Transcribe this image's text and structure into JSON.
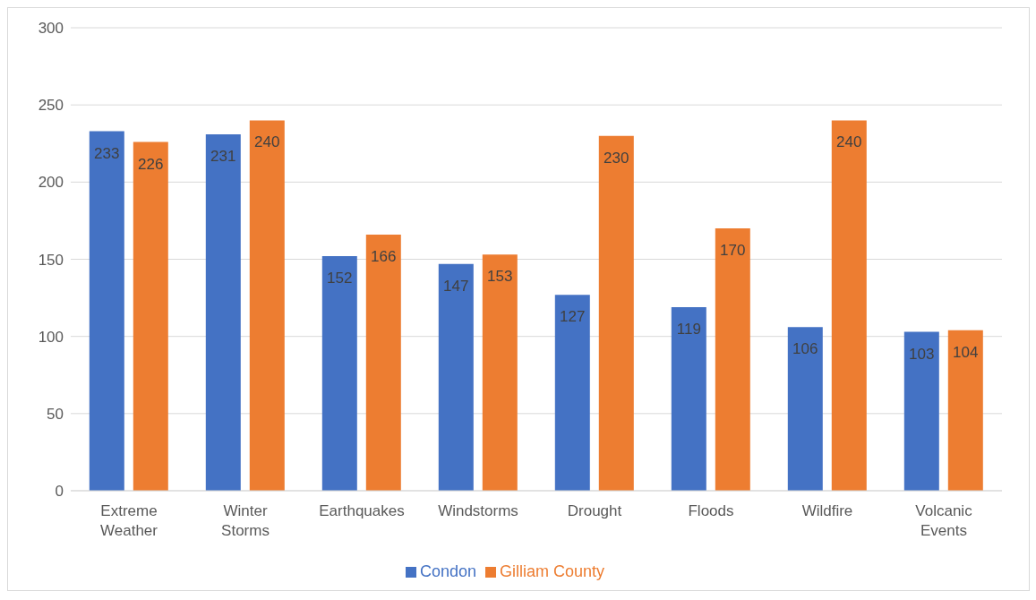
{
  "chart_data": {
    "type": "bar",
    "categories": [
      "Extreme Weather",
      "Winter Storms",
      "Earthquakes",
      "Windstorms",
      "Drought",
      "Floods",
      "Wildfire",
      "Volcanic Events"
    ],
    "series": [
      {
        "name": "Condon",
        "color": "#4472c4",
        "values": [
          233,
          231,
          152,
          147,
          127,
          119,
          106,
          103
        ]
      },
      {
        "name": "Gilliam County",
        "color": "#ed7d31",
        "values": [
          226,
          240,
          166,
          153,
          230,
          170,
          240,
          104
        ]
      }
    ],
    "ylim": [
      0,
      300
    ],
    "yticks": [
      0,
      50,
      100,
      150,
      200,
      250,
      300
    ],
    "grid": "y",
    "legend": "bottom",
    "data_labels": true
  }
}
